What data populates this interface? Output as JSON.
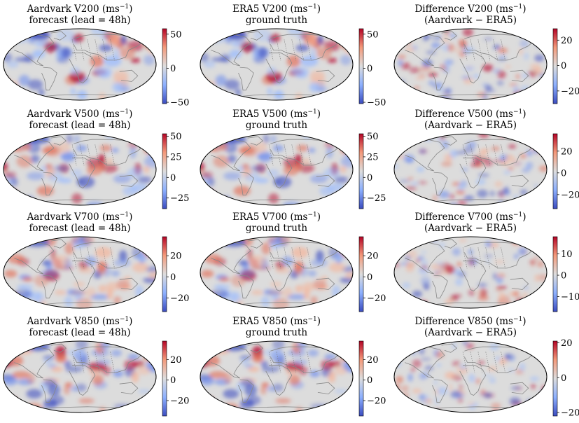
{
  "figure": {
    "layout": "4 rows x 3 columns of global map panels (Robinson-style projection) with vertical colorbars",
    "rows": [
      {
        "variable": "V200",
        "panels": [
          {
            "title_line1": "Aardvark V200 (ms",
            "title_sup": "−1",
            "title_close": ")",
            "title_line2": "forecast (lead = 48h)",
            "colorbar": {
              "range": [
                -52,
                58
              ],
              "ticks": [
                50,
                0,
                -50
              ],
              "tick_labels": [
                "50",
                "0",
                "−50"
              ]
            }
          },
          {
            "title_line1": "ERA5 V200 (ms",
            "title_sup": "−1",
            "title_close": ")",
            "title_line2": "ground truth",
            "colorbar": {
              "range": [
                -52,
                58
              ],
              "ticks": [
                50,
                0,
                -50
              ],
              "tick_labels": [
                "50",
                "0",
                "−50"
              ]
            }
          },
          {
            "title_line1": "Difference V200 (ms",
            "title_sup": "−1",
            "title_close": ")",
            "title_line2": "(Aardvark − ERA5)",
            "colorbar": {
              "range": [
                -30,
                29
              ],
              "ticks": [
                20,
                0,
                -20
              ],
              "tick_labels": [
                "20",
                "0",
                "−20"
              ]
            }
          }
        ]
      },
      {
        "variable": "V500",
        "panels": [
          {
            "title_line1": "Aardvark V500 (ms",
            "title_sup": "−1",
            "title_close": ")",
            "title_line2": "forecast (lead = 48h)",
            "colorbar": {
              "range": [
                -38,
                53
              ],
              "ticks": [
                50,
                25,
                0,
                -25
              ],
              "tick_labels": [
                "50",
                "25",
                "0",
                "−25"
              ]
            }
          },
          {
            "title_line1": "ERA5 V500 (ms",
            "title_sup": "−1",
            "title_close": ")",
            "title_line2": "ground truth",
            "colorbar": {
              "range": [
                -38,
                53
              ],
              "ticks": [
                50,
                25,
                0,
                -25
              ],
              "tick_labels": [
                "50",
                "25",
                "0",
                "−25"
              ]
            }
          },
          {
            "title_line1": "Difference V500 (ms",
            "title_sup": "−1",
            "title_close": ")",
            "title_line2": "(Aardvark − ERA5)",
            "colorbar": {
              "range": [
                -33,
                36
              ],
              "ticks": [
                20,
                0,
                -20
              ],
              "tick_labels": [
                "20",
                "0",
                "−20"
              ]
            }
          }
        ]
      },
      {
        "variable": "V700",
        "panels": [
          {
            "title_line1": "Aardvark V700 (ms",
            "title_sup": "−1",
            "title_close": ")",
            "title_line2": "forecast (lead = 48h)",
            "colorbar": {
              "range": [
                -33,
                38
              ],
              "ticks": [
                20,
                0,
                -20
              ],
              "tick_labels": [
                "20",
                "0",
                "−20"
              ]
            }
          },
          {
            "title_line1": "ERA5 V700 (ms",
            "title_sup": "−1",
            "title_close": ")",
            "title_line2": "ground truth",
            "colorbar": {
              "range": [
                -33,
                38
              ],
              "ticks": [
                20,
                0,
                -20
              ],
              "tick_labels": [
                "20",
                "0",
                "−20"
              ]
            }
          },
          {
            "title_line1": "Difference V700 (ms",
            "title_sup": "−1",
            "title_close": ")",
            "title_line2": "(Aardvark − ERA5)",
            "colorbar": {
              "range": [
                -17,
                18
              ],
              "ticks": [
                10,
                0,
                -10
              ],
              "tick_labels": [
                "10",
                "0",
                "−10"
              ]
            }
          }
        ]
      },
      {
        "variable": "V850",
        "panels": [
          {
            "title_line1": "Aardvark V850 (ms",
            "title_sup": "−1",
            "title_close": ")",
            "title_line2": "forecast (lead = 48h)",
            "colorbar": {
              "range": [
                -35,
                38
              ],
              "ticks": [
                20,
                0,
                -20
              ],
              "tick_labels": [
                "20",
                "0",
                "−20"
              ]
            }
          },
          {
            "title_line1": "ERA5 V850 (ms",
            "title_sup": "−1",
            "title_close": ")",
            "title_line2": "ground truth",
            "colorbar": {
              "range": [
                -35,
                38
              ],
              "ticks": [
                20,
                0,
                -20
              ],
              "tick_labels": [
                "20",
                "0",
                "−20"
              ]
            }
          },
          {
            "title_line1": "Difference V850 (ms",
            "title_sup": "−1",
            "title_close": ")",
            "title_line2": "(Aardvark − ERA5)",
            "colorbar": {
              "range": [
                -22,
                21
              ],
              "ticks": [
                20,
                0,
                -20
              ],
              "tick_labels": [
                "20",
                "0",
                "−20"
              ]
            }
          }
        ]
      }
    ]
  },
  "chart_data": {
    "type": "heatmap",
    "description": "Meridional wind (V) fields at 200, 500, 700 and 850 hPa: Aardvark 48h forecast, ERA5 ground truth, and their difference",
    "colormap": "coolwarm",
    "colors": {
      "low": "#3b4cc0",
      "mid": "#dddddd",
      "high": "#b40426"
    },
    "panels": [
      {
        "row": "V200",
        "kind": "forecast",
        "vmin": -52,
        "vmax": 58
      },
      {
        "row": "V200",
        "kind": "ground_truth",
        "vmin": -52,
        "vmax": 58
      },
      {
        "row": "V200",
        "kind": "difference",
        "vmin": -30,
        "vmax": 29
      },
      {
        "row": "V500",
        "kind": "forecast",
        "vmin": -38,
        "vmax": 53
      },
      {
        "row": "V500",
        "kind": "ground_truth",
        "vmin": -38,
        "vmax": 53
      },
      {
        "row": "V500",
        "kind": "difference",
        "vmin": -33,
        "vmax": 36
      },
      {
        "row": "V700",
        "kind": "forecast",
        "vmin": -33,
        "vmax": 38
      },
      {
        "row": "V700",
        "kind": "ground_truth",
        "vmin": -33,
        "vmax": 38
      },
      {
        "row": "V700",
        "kind": "difference",
        "vmin": -17,
        "vmax": 18
      },
      {
        "row": "V850",
        "kind": "forecast",
        "vmin": -35,
        "vmax": 38
      },
      {
        "row": "V850",
        "kind": "ground_truth",
        "vmin": -35,
        "vmax": 38
      },
      {
        "row": "V850",
        "kind": "difference",
        "vmin": -22,
        "vmax": 21
      }
    ]
  }
}
